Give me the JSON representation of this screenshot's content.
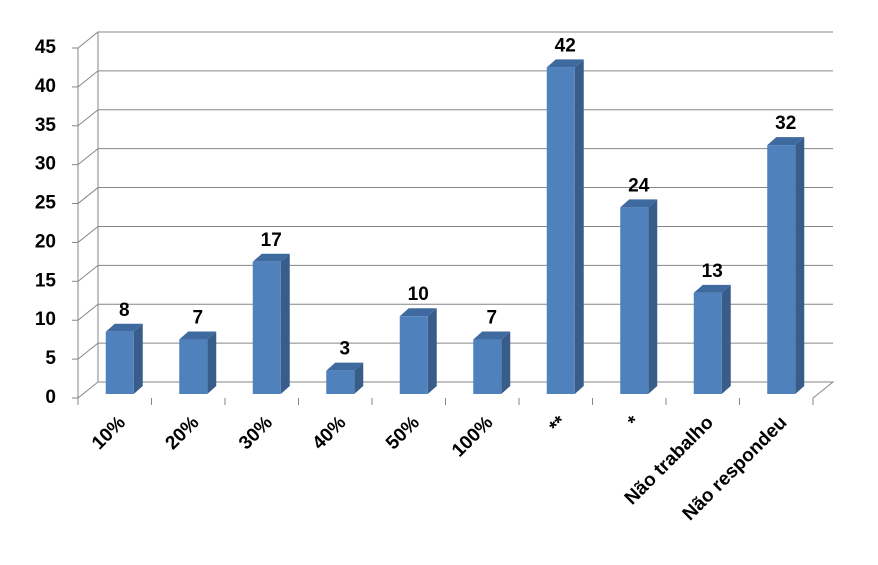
{
  "chart_data": {
    "type": "bar",
    "categories": [
      "10%",
      "20%",
      "30%",
      "40%",
      "50%",
      "100%",
      "**",
      "*",
      "Não trabalho",
      "Não respondeu"
    ],
    "values": [
      8,
      7,
      17,
      3,
      10,
      7,
      42,
      24,
      13,
      32
    ],
    "color": "#4f81bd",
    "ylim": [
      0,
      45
    ],
    "yticks": [
      0,
      5,
      10,
      15,
      20,
      25,
      30,
      35,
      40,
      45
    ],
    "grid": true
  }
}
